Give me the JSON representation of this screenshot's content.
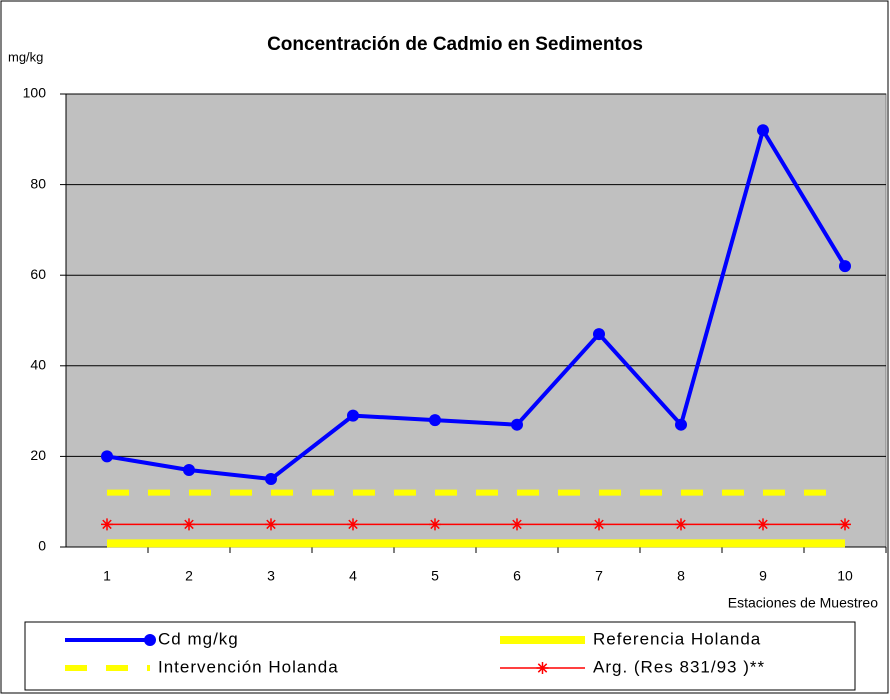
{
  "chart_data": {
    "type": "line",
    "title": "Concentración de Cadmio en Sedimentos",
    "y_label": "mg/kg",
    "x_label": "Estaciones de Muestreo",
    "categories": [
      "1",
      "2",
      "3",
      "4",
      "5",
      "6",
      "7",
      "8",
      "9",
      "10"
    ],
    "series": [
      {
        "name": "Cd  mg/kg",
        "color": "#0000ff",
        "width": 4,
        "marker": "circle",
        "values": [
          20,
          17,
          15,
          29,
          28,
          27,
          47,
          27,
          92,
          62
        ]
      },
      {
        "name": "Referencia Holanda",
        "color": "#ffff00",
        "width": 8,
        "marker": "none",
        "values": [
          0.8,
          0.8,
          0.8,
          0.8,
          0.8,
          0.8,
          0.8,
          0.8,
          0.8,
          0.8
        ]
      },
      {
        "name": "Intervención Holanda",
        "color": "#ffff00",
        "width": 6,
        "dash": true,
        "marker": "none",
        "values": [
          12,
          12,
          12,
          12,
          12,
          12,
          12,
          12,
          12,
          12
        ]
      },
      {
        "name": "Arg. (Res 831/93 )**",
        "color": "#ff0000",
        "width": 1.5,
        "marker": "asterisk",
        "values": [
          5,
          5,
          5,
          5,
          5,
          5,
          5,
          5,
          5,
          5
        ]
      }
    ],
    "ylim": [
      0,
      100
    ],
    "yticks": [
      0,
      20,
      40,
      60,
      80,
      100
    ],
    "grid": true,
    "plot_background": "#c0c0c0",
    "legend": "bottom"
  }
}
